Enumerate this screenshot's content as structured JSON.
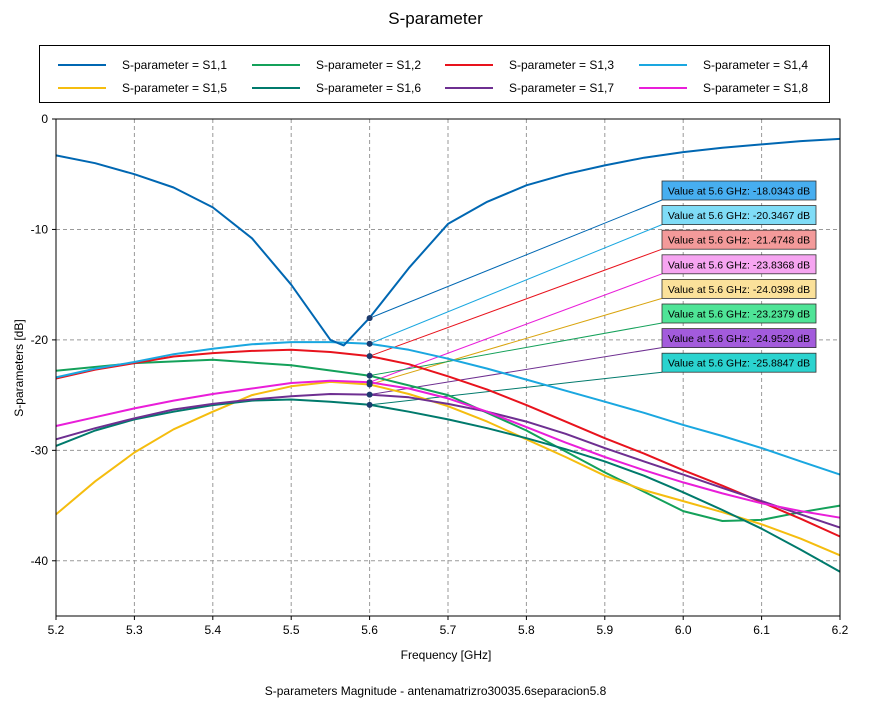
{
  "chart_data": {
    "type": "line",
    "title": "S-parameter",
    "xlabel": "Frequency [GHz]",
    "ylabel": "S-parameters [dB]",
    "caption": "S-parameters Magnitude - antenamatrizro30035.6separacion5.8",
    "xlim": [
      5.2,
      6.2
    ],
    "ylim": [
      -45,
      0
    ],
    "x_ticks": [
      "5.2",
      "5.3",
      "5.4",
      "5.5",
      "5.6",
      "5.7",
      "5.8",
      "5.9",
      "6.0",
      "6.1",
      "6.2"
    ],
    "y_ticks": [
      "0",
      "-10",
      "-20",
      "-30",
      "-40"
    ],
    "grid": true,
    "legend_position": "top",
    "marker_x": 5.6,
    "series": [
      {
        "name": "S-parameter = S1,1",
        "color": "#0067b2",
        "x": [
          5.2,
          5.25,
          5.3,
          5.35,
          5.4,
          5.45,
          5.5,
          5.55,
          5.567,
          5.6,
          5.65,
          5.7,
          5.75,
          5.8,
          5.85,
          5.9,
          5.95,
          6.0,
          6.05,
          6.1,
          6.15,
          6.2
        ],
        "y": [
          -3.3,
          -4.0,
          -5.0,
          -6.2,
          -8.0,
          -10.8,
          -15.0,
          -20.0,
          -20.5,
          -18.0,
          -13.5,
          -9.5,
          -7.5,
          -6.0,
          -5.0,
          -4.2,
          -3.5,
          -3.0,
          -2.6,
          -2.3,
          -2.0,
          -1.8
        ]
      },
      {
        "name": "S-parameter = S1,2",
        "color": "#14a15a",
        "x": [
          5.2,
          5.3,
          5.4,
          5.5,
          5.6,
          5.7,
          5.8,
          5.9,
          6.0,
          6.05,
          6.1,
          6.15,
          6.2
        ],
        "y": [
          -22.8,
          -22.1,
          -21.8,
          -22.3,
          -23.24,
          -25.0,
          -28.2,
          -32.0,
          -35.5,
          -36.4,
          -36.3,
          -35.6,
          -35.0
        ]
      },
      {
        "name": "S-parameter = S1,3",
        "color": "#e8131d",
        "x": [
          5.2,
          5.25,
          5.3,
          5.35,
          5.4,
          5.45,
          5.5,
          5.55,
          5.6,
          5.65,
          5.7,
          5.75,
          5.8,
          5.85,
          5.9,
          5.95,
          6.0,
          6.05,
          6.1,
          6.15,
          6.2
        ],
        "y": [
          -23.5,
          -22.7,
          -22.1,
          -21.5,
          -21.2,
          -21.0,
          -20.9,
          -21.1,
          -21.47,
          -22.2,
          -23.3,
          -24.5,
          -25.9,
          -27.4,
          -28.9,
          -30.3,
          -31.8,
          -33.2,
          -34.7,
          -36.2,
          -37.8
        ]
      },
      {
        "name": "S-parameter = S1,4",
        "color": "#1aa7e0",
        "x": [
          5.2,
          5.25,
          5.3,
          5.35,
          5.4,
          5.45,
          5.5,
          5.55,
          5.6,
          5.65,
          5.7,
          5.75,
          5.8,
          5.85,
          5.9,
          5.95,
          6.0,
          6.05,
          6.1,
          6.15,
          6.2
        ],
        "y": [
          -23.4,
          -22.6,
          -22.0,
          -21.3,
          -20.8,
          -20.4,
          -20.2,
          -20.2,
          -20.35,
          -20.9,
          -21.7,
          -22.6,
          -23.6,
          -24.6,
          -25.6,
          -26.6,
          -27.7,
          -28.7,
          -29.8,
          -31.0,
          -32.2
        ]
      },
      {
        "name": "S-parameter = S1,5",
        "color": "#f5bd0f",
        "x": [
          5.2,
          5.25,
          5.3,
          5.35,
          5.4,
          5.45,
          5.5,
          5.55,
          5.6,
          5.65,
          5.7,
          5.75,
          5.8,
          5.85,
          5.9,
          5.95,
          6.0,
          6.05,
          6.1,
          6.15,
          6.2
        ],
        "y": [
          -35.8,
          -32.8,
          -30.2,
          -28.1,
          -26.5,
          -25.0,
          -24.2,
          -23.8,
          -24.04,
          -24.9,
          -26.0,
          -27.4,
          -29.0,
          -30.6,
          -32.3,
          -33.6,
          -34.6,
          -35.6,
          -36.7,
          -38.0,
          -39.5
        ]
      },
      {
        "name": "S-parameter = S1,6",
        "color": "#007a6c",
        "x": [
          5.2,
          5.25,
          5.3,
          5.35,
          5.4,
          5.45,
          5.5,
          5.55,
          5.6,
          5.65,
          5.7,
          5.75,
          5.8,
          5.85,
          5.9,
          5.95,
          6.0,
          6.05,
          6.1,
          6.15,
          6.2
        ],
        "y": [
          -29.6,
          -28.2,
          -27.2,
          -26.5,
          -25.9,
          -25.5,
          -25.4,
          -25.6,
          -25.88,
          -26.5,
          -27.2,
          -28.0,
          -28.9,
          -29.9,
          -31.0,
          -32.3,
          -33.8,
          -35.4,
          -37.1,
          -39.0,
          -41.0
        ]
      },
      {
        "name": "S-parameter = S1,7",
        "color": "#6e2f91",
        "x": [
          5.2,
          5.25,
          5.3,
          5.35,
          5.4,
          5.45,
          5.5,
          5.55,
          5.6,
          5.65,
          5.7,
          5.75,
          5.8,
          5.85,
          5.9,
          5.95,
          6.0,
          6.05,
          6.1,
          6.15,
          6.2
        ],
        "y": [
          -29.0,
          -28.0,
          -27.1,
          -26.3,
          -25.8,
          -25.4,
          -25.1,
          -24.9,
          -24.95,
          -25.2,
          -25.8,
          -26.5,
          -27.4,
          -28.5,
          -29.8,
          -31.0,
          -32.2,
          -33.4,
          -34.6,
          -35.8,
          -37.0
        ]
      },
      {
        "name": "S-parameter = S1,8",
        "color": "#e91ed9",
        "x": [
          5.2,
          5.25,
          5.3,
          5.35,
          5.4,
          5.45,
          5.5,
          5.55,
          5.6,
          5.65,
          5.7,
          5.75,
          5.8,
          5.85,
          5.9,
          5.95,
          6.0,
          6.05,
          6.1,
          6.15,
          6.2
        ],
        "y": [
          -27.8,
          -27.0,
          -26.2,
          -25.5,
          -24.9,
          -24.4,
          -23.9,
          -23.7,
          -23.84,
          -24.4,
          -25.3,
          -26.5,
          -27.9,
          -29.3,
          -30.6,
          -31.8,
          -32.9,
          -33.9,
          -34.8,
          -35.5,
          -36.1
        ]
      }
    ],
    "annotations": [
      {
        "text": "Value at 5.6 GHz: -18.0343 dB",
        "y": -18.0343,
        "fill": "#47aef0",
        "line": "#0067b2"
      },
      {
        "text": "Value at 5.6 GHz: -20.3467 dB",
        "y": -20.3467,
        "fill": "#7fdcf7",
        "line": "#1aa7e0"
      },
      {
        "text": "Value at 5.6 GHz: -21.4748 dB",
        "y": -21.4748,
        "fill": "#f39a9a",
        "line": "#e8131d"
      },
      {
        "text": "Value at 5.6 GHz: -23.8368 dB",
        "y": -23.8368,
        "fill": "#f6a5f1",
        "line": "#e91ed9"
      },
      {
        "text": "Value at 5.6 GHz: -24.0398 dB",
        "y": -24.0398,
        "fill": "#fbe19a",
        "line": "#d9a40e"
      },
      {
        "text": "Value at 5.6 GHz: -23.2379 dB",
        "y": -23.2379,
        "fill": "#4fe497",
        "line": "#14a15a"
      },
      {
        "text": "Value at 5.6 GHz: -24.9529 dB",
        "y": -24.9529,
        "fill": "#a35bdc",
        "line": "#6e2f91"
      },
      {
        "text": "Value at 5.6 GHz: -25.8847 dB",
        "y": -25.8847,
        "fill": "#2bd3cf",
        "line": "#007a6c"
      }
    ]
  }
}
